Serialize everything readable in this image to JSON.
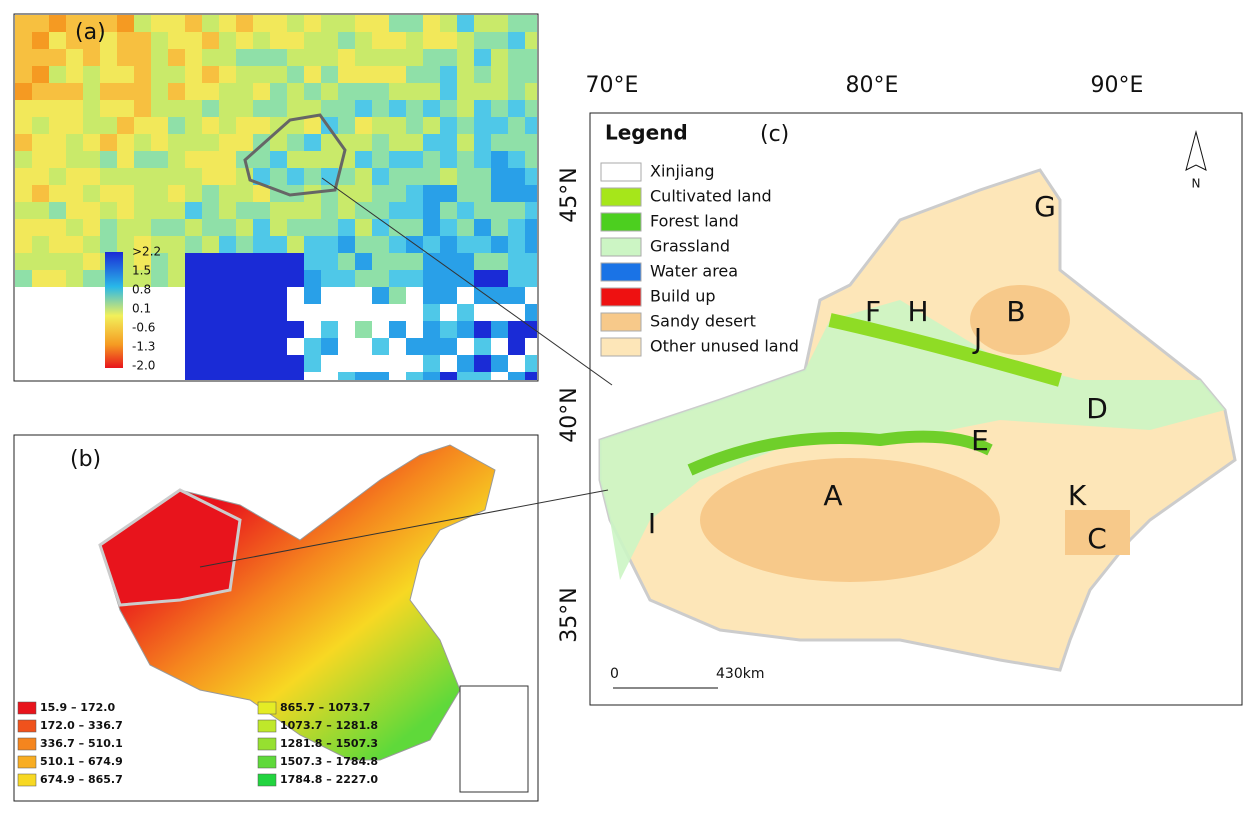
{
  "panel_a": {
    "label": "(a)",
    "colorbar_labels": [
      ">2.2",
      "1.5",
      "0.8",
      "0.1",
      "-0.6",
      "-1.3",
      "-2.0"
    ]
  },
  "panel_b": {
    "label": "(b)",
    "legend": [
      {
        "label": "15.9 – 172.0",
        "color": "#e8141c"
      },
      {
        "label": "172.0 – 336.7",
        "color": "#f0521c"
      },
      {
        "label": "336.7 – 510.1",
        "color": "#f5851e"
      },
      {
        "label": "510.1 – 674.9",
        "color": "#f8ad22"
      },
      {
        "label": "674.9 – 865.7",
        "color": "#f7d823"
      },
      {
        "label": "865.7 – 1073.7",
        "color": "#e4ec25"
      },
      {
        "label": "1073.7 – 1281.8",
        "color": "#bfe82a"
      },
      {
        "label": "1281.8 – 1507.3",
        "color": "#96e030"
      },
      {
        "label": "1507.3 – 1784.8",
        "color": "#5fd93a"
      },
      {
        "label": "1784.8 – 2227.0",
        "color": "#22d43f"
      }
    ]
  },
  "panel_c": {
    "label": "(c)",
    "legend_title": "Legend",
    "legend": [
      {
        "label": "Xinjiang",
        "color": "#ffffff"
      },
      {
        "label": "Cultivated land",
        "color": "#a6e61a"
      },
      {
        "label": "Forest land",
        "color": "#4ccf1f"
      },
      {
        "label": "Grassland",
        "color": "#ccf5c4"
      },
      {
        "label": "Water area",
        "color": "#1a73e6"
      },
      {
        "label": "Build up",
        "color": "#ee1111"
      },
      {
        "label": "Sandy desert",
        "color": "#f7c98a"
      },
      {
        "label": "Other unused land",
        "color": "#fde6b8"
      }
    ],
    "longitude_labels": [
      "70°E",
      "80°E",
      "90°E"
    ],
    "latitude_labels": [
      "45°N",
      "40°N",
      "35°N"
    ],
    "scale_labels": [
      "0",
      "430km"
    ],
    "north": "N",
    "regions": [
      "A",
      "B",
      "C",
      "D",
      "E",
      "F",
      "G",
      "H",
      "I",
      "J",
      "K"
    ]
  }
}
